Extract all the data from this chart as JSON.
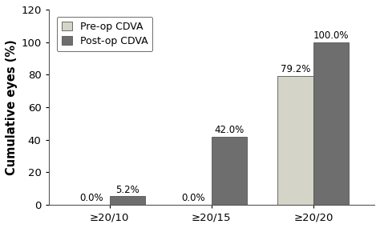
{
  "categories": [
    "≥20/10",
    "≥20/15",
    "≥20/20"
  ],
  "preop_values": [
    0.0,
    0.0,
    79.2
  ],
  "postop_values": [
    5.2,
    42.0,
    100.0
  ],
  "preop_labels": [
    "0.0%",
    "0.0%",
    "79.2%"
  ],
  "postop_labels": [
    "5.2%",
    "42.0%",
    "100.0%"
  ],
  "preop_color": "#d4d4c8",
  "postop_color": "#6e6e6e",
  "ylabel": "Cumulative eyes (%)",
  "ylim": [
    0,
    120
  ],
  "yticks": [
    0,
    20,
    40,
    60,
    80,
    100,
    120
  ],
  "legend_preop": "Pre-op CDVA",
  "legend_postop": "Post-op CDVA",
  "bar_width": 0.35,
  "label_fontsize": 8.5,
  "tick_fontsize": 9.5,
  "legend_fontsize": 9.0,
  "ylabel_fontsize": 10.5
}
